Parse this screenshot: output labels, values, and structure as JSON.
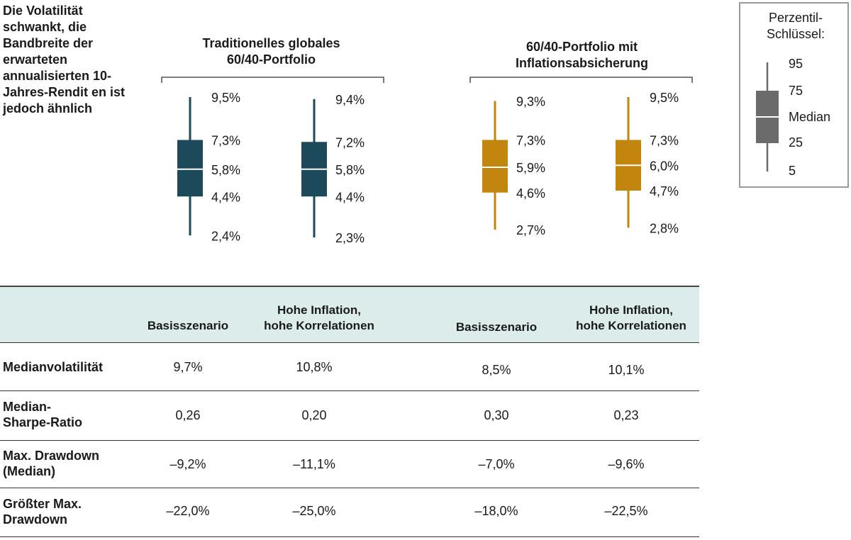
{
  "headline": "Die Volatilität schwankt, die Bandbreite der erwarteten annualisierten 10-Jahres-Rendit en ist jedoch ähnlich",
  "groups": [
    {
      "title_line1": "Traditionelles globales",
      "title_line2": "60/40-Portfolio"
    },
    {
      "title_line1": "60/40-Portfolio mit",
      "title_line2": "Inflationsabsicherung"
    }
  ],
  "legend": {
    "title_line1": "Perzentil-",
    "title_line2": "Schlüssel:",
    "labels": [
      "95",
      "75",
      "Median",
      "25",
      "5"
    ],
    "color": "#6b6b6b"
  },
  "colors": {
    "teal": "#1d4a5a",
    "gold": "#c2860e",
    "header_bg": "#dbecea"
  },
  "chart_data": {
    "type": "boxplot",
    "y_unit": "%",
    "series": [
      {
        "group": "Traditionelles globales 60/40-Portfolio",
        "scenario": "Basisszenario",
        "color": "#1d4a5a",
        "p5": 2.4,
        "p25": 4.4,
        "median": 5.8,
        "p75": 7.3,
        "p95": 9.5,
        "labels": [
          "9,5%",
          "7,3%",
          "5,8%",
          "4,4%",
          "2,4%"
        ]
      },
      {
        "group": "Traditionelles globales 60/40-Portfolio",
        "scenario": "Hohe Inflation, hohe Korrelationen",
        "color": "#1d4a5a",
        "p5": 2.3,
        "p25": 4.4,
        "median": 5.8,
        "p75": 7.2,
        "p95": 9.4,
        "labels": [
          "9,4%",
          "7,2%",
          "5,8%",
          "4,4%",
          "2,3%"
        ]
      },
      {
        "group": "60/40-Portfolio mit Inflationsabsicherung",
        "scenario": "Basisszenario",
        "color": "#c2860e",
        "p5": 2.7,
        "p25": 4.6,
        "median": 5.9,
        "p75": 7.3,
        "p95": 9.3,
        "labels": [
          "9,3%",
          "7,3%",
          "5,9%",
          "4,6%",
          "2,7%"
        ]
      },
      {
        "group": "60/40-Portfolio mit Inflationsabsicherung",
        "scenario": "Hohe Inflation, hohe Korrelationen",
        "color": "#c2860e",
        "p5": 2.8,
        "p25": 4.7,
        "median": 6.0,
        "p75": 7.3,
        "p95": 9.5,
        "labels": [
          "9,5%",
          "7,3%",
          "6,0%",
          "4,7%",
          "2,8%"
        ]
      }
    ]
  },
  "table": {
    "columns": [
      {
        "line1": "Basisszenario",
        "line2": ""
      },
      {
        "line1": "Hohe Inflation,",
        "line2": "hohe Korrelationen"
      },
      {
        "line1": "Basisszenario",
        "line2": ""
      },
      {
        "line1": "Hohe Inflation,",
        "line2": "hohe Korrelationen"
      }
    ],
    "rows": [
      {
        "label_line1": "Medianvolatilität",
        "label_line2": "",
        "values": [
          "9,7%",
          "10,8%",
          "8,5%",
          "10,1%"
        ]
      },
      {
        "label_line1": "Median-",
        "label_line2": "Sharpe-Ratio",
        "values": [
          "0,26",
          "0,20",
          "0,30",
          "0,23"
        ]
      },
      {
        "label_line1": "Max. Drawdown",
        "label_line2": "(Median)",
        "values": [
          "–9,2%",
          "–11,1%",
          "–7,0%",
          "–9,6%"
        ]
      },
      {
        "label_line1": "Größter Max.",
        "label_line2": "Drawdown",
        "values": [
          "–22,0%",
          "–25,0%",
          "–18,0%",
          "–22,5%"
        ]
      }
    ]
  }
}
